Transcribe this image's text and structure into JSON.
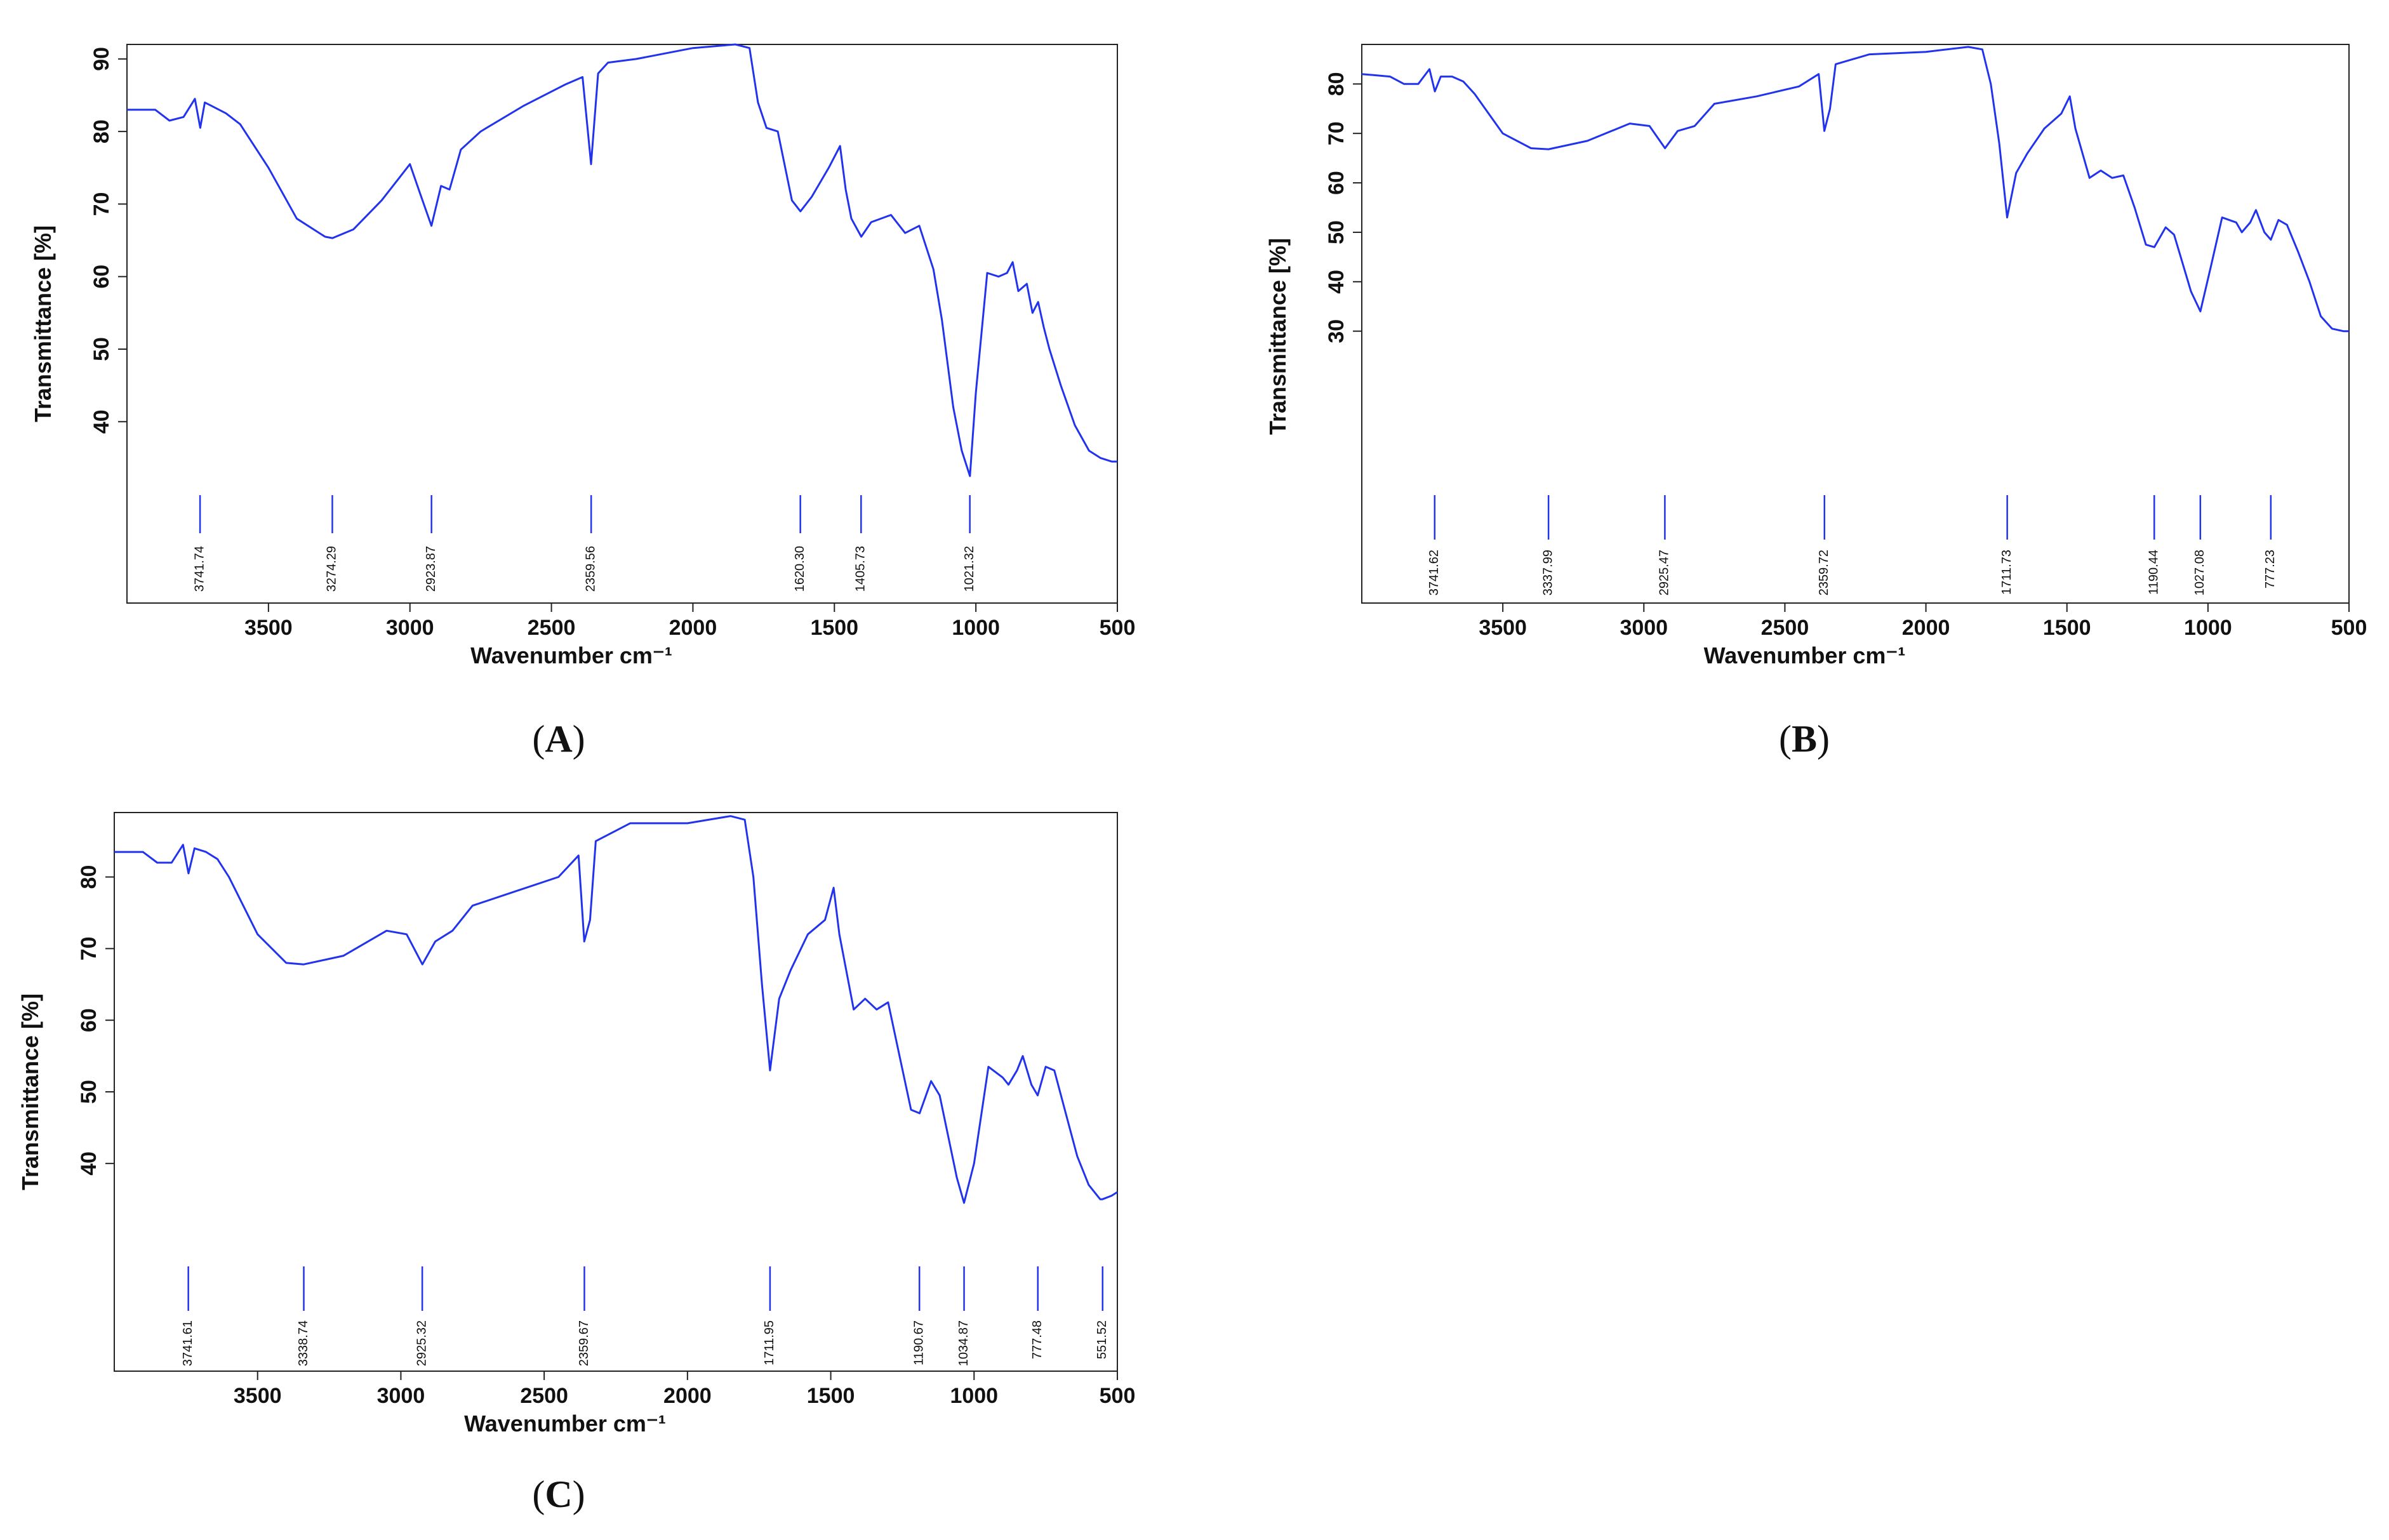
{
  "chart_data": [
    {
      "type": "line",
      "panel_label": "A",
      "xlabel": "Wavenumber cm⁻¹",
      "ylabel": "Transmittance [%]",
      "xlim": [
        4000,
        500
      ],
      "ylim": [
        15,
        92
      ],
      "x_ticks": [
        3500,
        3000,
        2500,
        2000,
        1500,
        1000,
        500
      ],
      "y_ticks": [
        40,
        50,
        60,
        70,
        80,
        90
      ],
      "peaks": [
        "3741.74",
        "3274.29",
        "2923.87",
        "2359.56",
        "1620.30",
        "1405.73",
        "1021.32"
      ],
      "series": [
        {
          "x": [
            4000,
            3900,
            3850,
            3800,
            3760,
            3741,
            3725,
            3700,
            3650,
            3600,
            3500,
            3400,
            3300,
            3274,
            3200,
            3100,
            3000,
            2960,
            2924,
            2890,
            2860,
            2820,
            2750,
            2600,
            2450,
            2390,
            2360,
            2335,
            2300,
            2200,
            2000,
            1850,
            1800,
            1770,
            1740,
            1700,
            1650,
            1620,
            1580,
            1520,
            1480,
            1460,
            1440,
            1405,
            1370,
            1300,
            1250,
            1200,
            1150,
            1120,
            1080,
            1050,
            1021,
            1000,
            960,
            920,
            890,
            870,
            850,
            820,
            800,
            780,
            760,
            740,
            700,
            650,
            600,
            560,
            520,
            500
          ],
          "y": [
            83,
            83,
            81.5,
            82,
            84.5,
            80.5,
            84,
            83.5,
            82.5,
            81,
            75,
            68,
            65.5,
            65.3,
            66.5,
            70.5,
            75.5,
            71,
            67,
            72.5,
            72,
            77.5,
            80,
            83.5,
            86.5,
            87.5,
            75.5,
            88,
            89.5,
            90,
            91.5,
            92,
            91.5,
            84,
            80.5,
            80,
            70.5,
            69,
            71,
            75,
            78,
            72,
            68,
            65.5,
            67.5,
            68.5,
            66,
            67,
            61,
            54,
            42,
            36,
            32.5,
            44,
            60.5,
            60,
            60.5,
            62,
            58,
            59,
            55,
            56.5,
            53,
            50,
            45,
            39.5,
            36,
            35,
            34.5,
            34.5
          ]
        }
      ]
    },
    {
      "type": "line",
      "panel_label": "B",
      "xlabel": "Wavenumber cm⁻¹",
      "ylabel": "Transmittance [%]",
      "xlim": [
        4000,
        500
      ],
      "ylim": [
        -25,
        88
      ],
      "x_ticks": [
        3500,
        3000,
        2500,
        2000,
        1500,
        1000,
        500
      ],
      "y_ticks": [
        30,
        40,
        50,
        60,
        70,
        80
      ],
      "peaks": [
        "3741.62",
        "3337.99",
        "2925.47",
        "2359.72",
        "1711.73",
        "1190.44",
        "1027.08",
        "777.23"
      ],
      "series": [
        {
          "x": [
            4000,
            3900,
            3850,
            3800,
            3760,
            3741,
            3720,
            3680,
            3640,
            3600,
            3500,
            3400,
            3338,
            3200,
            3050,
            2980,
            2925,
            2880,
            2820,
            2750,
            2600,
            2450,
            2380,
            2360,
            2340,
            2320,
            2200,
            2000,
            1850,
            1800,
            1770,
            1740,
            1712,
            1680,
            1640,
            1580,
            1520,
            1490,
            1470,
            1420,
            1380,
            1340,
            1300,
            1260,
            1220,
            1190,
            1150,
            1120,
            1060,
            1027,
            990,
            950,
            900,
            880,
            850,
            830,
            800,
            777,
            750,
            720,
            680,
            640,
            600,
            560,
            520,
            500
          ],
          "y": [
            82,
            81.5,
            80,
            80,
            83,
            78.5,
            81.5,
            81.5,
            80.5,
            78,
            70,
            67,
            66.8,
            68.5,
            72,
            71.5,
            67,
            70.5,
            71.5,
            76,
            77.5,
            79.5,
            82,
            70.5,
            75,
            84,
            86,
            86.5,
            87.5,
            87,
            80,
            68,
            53,
            62,
            66,
            71,
            74,
            77.5,
            71,
            61,
            62.5,
            61,
            61.5,
            55,
            47.5,
            47,
            51,
            49.5,
            38,
            34,
            43,
            53,
            52,
            50,
            52,
            54.5,
            50,
            48.5,
            52.5,
            51.5,
            46,
            40,
            33,
            30.5,
            30,
            30
          ]
        }
      ]
    },
    {
      "type": "line",
      "panel_label": "C",
      "xlabel": "Wavenumber cm⁻¹",
      "ylabel": "Transmittance [%]",
      "xlim": [
        4000,
        500
      ],
      "ylim": [
        11,
        89
      ],
      "x_ticks": [
        3500,
        3000,
        2500,
        2000,
        1500,
        1000,
        500
      ],
      "y_ticks": [
        40,
        50,
        60,
        70,
        80
      ],
      "peaks": [
        "3741.61",
        "3338.74",
        "2925.32",
        "2359.67",
        "1711.95",
        "1190.67",
        "1034.87",
        "777.48",
        "551.52"
      ],
      "series": [
        {
          "x": [
            4000,
            3900,
            3850,
            3800,
            3760,
            3741,
            3720,
            3680,
            3640,
            3600,
            3500,
            3400,
            3339,
            3200,
            3050,
            2980,
            2925,
            2880,
            2820,
            2750,
            2600,
            2450,
            2380,
            2360,
            2340,
            2320,
            2200,
            2000,
            1850,
            1800,
            1770,
            1740,
            1712,
            1680,
            1640,
            1580,
            1520,
            1490,
            1470,
            1420,
            1380,
            1340,
            1300,
            1260,
            1220,
            1190,
            1150,
            1120,
            1060,
            1035,
            1000,
            950,
            900,
            880,
            850,
            830,
            800,
            778,
            750,
            720,
            680,
            640,
            600,
            560,
            552,
            520,
            500
          ],
          "y": [
            83.5,
            83.5,
            82,
            82,
            84.5,
            80.5,
            84,
            83.5,
            82.5,
            80,
            72,
            68,
            67.8,
            69,
            72.5,
            72,
            67.8,
            71,
            72.5,
            76,
            78,
            80,
            83,
            71,
            74,
            85,
            87.5,
            87.5,
            88.5,
            88,
            80,
            65,
            53,
            63,
            67,
            72,
            74,
            78.5,
            72,
            61.5,
            63,
            61.5,
            62.5,
            55,
            47.5,
            47,
            51.5,
            49.5,
            38,
            34.5,
            40,
            53.5,
            52,
            51,
            53,
            55,
            51,
            49.5,
            53.5,
            53,
            47,
            41,
            37,
            35,
            35,
            35.5,
            36
          ]
        }
      ]
    }
  ]
}
